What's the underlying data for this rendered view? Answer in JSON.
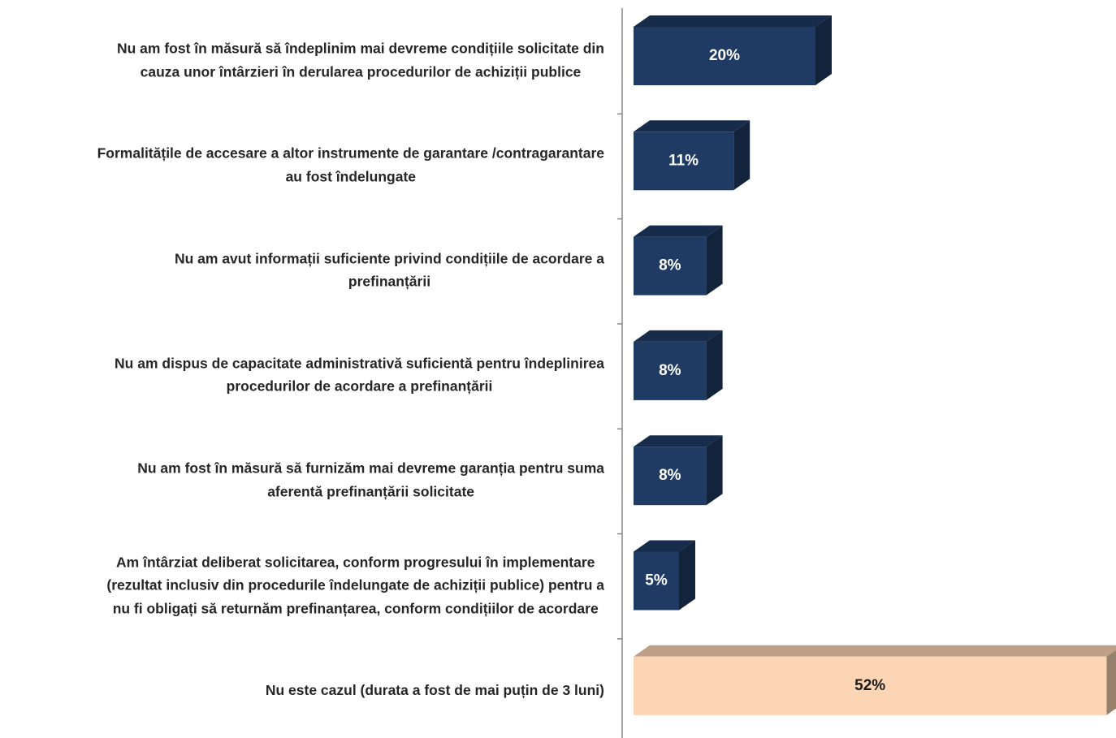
{
  "chart_data": {
    "type": "bar3d_horizontal",
    "categories": [
      [
        "Nu am fost în măsură să îndeplinim mai devreme condițiile solicitate din",
        "cauza unor întârzieri în derularea procedurilor de achiziții publice"
      ],
      [
        "Formalitățile de accesare a altor instrumente de garantare /contragarantare",
        "au fost îndelungate"
      ],
      [
        "Nu am avut informații suficiente privind condițiile de acordare a",
        "prefinanțării"
      ],
      [
        "Nu am dispus de capacitate administrativă suficientă pentru îndeplinirea",
        "procedurilor de acordare a prefinanțării"
      ],
      [
        "Nu am fost în măsură să furnizăm mai devreme garanția pentru suma",
        "aferentă prefinanțării solicitate"
      ],
      [
        "Am întârziat deliberat solicitarea, conform progresului în implementare",
        "(rezultat inclusiv din procedurile îndelungate de achiziții publice) pentru a",
        "nu fi obligați să returnăm prefinanțarea, conform condițiilor de acordare"
      ],
      [
        "Nu este cazul (durata a fost de mai puțin de 3 luni)"
      ]
    ],
    "values": [
      20,
      11,
      8,
      8,
      8,
      5,
      52
    ],
    "value_labels": [
      "20%",
      "11%",
      "8%",
      "8%",
      "8%",
      "5%",
      "52%"
    ],
    "colors": [
      "#1f3b63",
      "#1f3b63",
      "#1f3b63",
      "#1f3b63",
      "#1f3b63",
      "#1f3b63",
      "#fcd5b4"
    ],
    "label_colors": [
      "#ffffff",
      "#ffffff",
      "#ffffff",
      "#ffffff",
      "#ffffff",
      "#ffffff",
      "#1a1a1a"
    ]
  }
}
